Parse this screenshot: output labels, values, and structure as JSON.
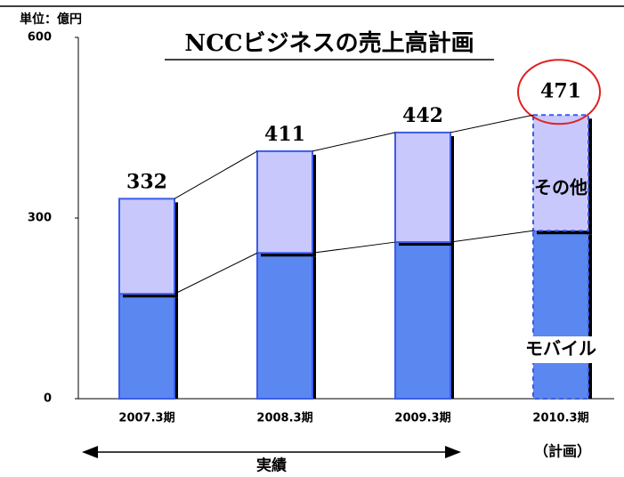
{
  "chart_data": {
    "type": "stacked_bar",
    "title": "NCCビジネスの売上高計画",
    "unit": "単位：億円",
    "categories": [
      "2007.3期",
      "2008.3期",
      "2009.3期",
      "2010.3期"
    ],
    "series": [
      {
        "name": "モバイル",
        "color": "#5b87f0",
        "values": [
          174,
          242,
          260,
          279
        ]
      },
      {
        "name": "その他",
        "color": "#c8c8fc",
        "values": [
          158,
          169,
          182,
          192
        ]
      }
    ],
    "totals": [
      332,
      411,
      442,
      471
    ],
    "ylim": [
      0,
      600
    ],
    "yticks": [
      0,
      300,
      600
    ],
    "grid": false,
    "actual_label": "実績",
    "plan_label": "（計画）",
    "edge_color": "#3b5ce8",
    "plan_dashed": true,
    "highlight_color": "#e02020"
  }
}
